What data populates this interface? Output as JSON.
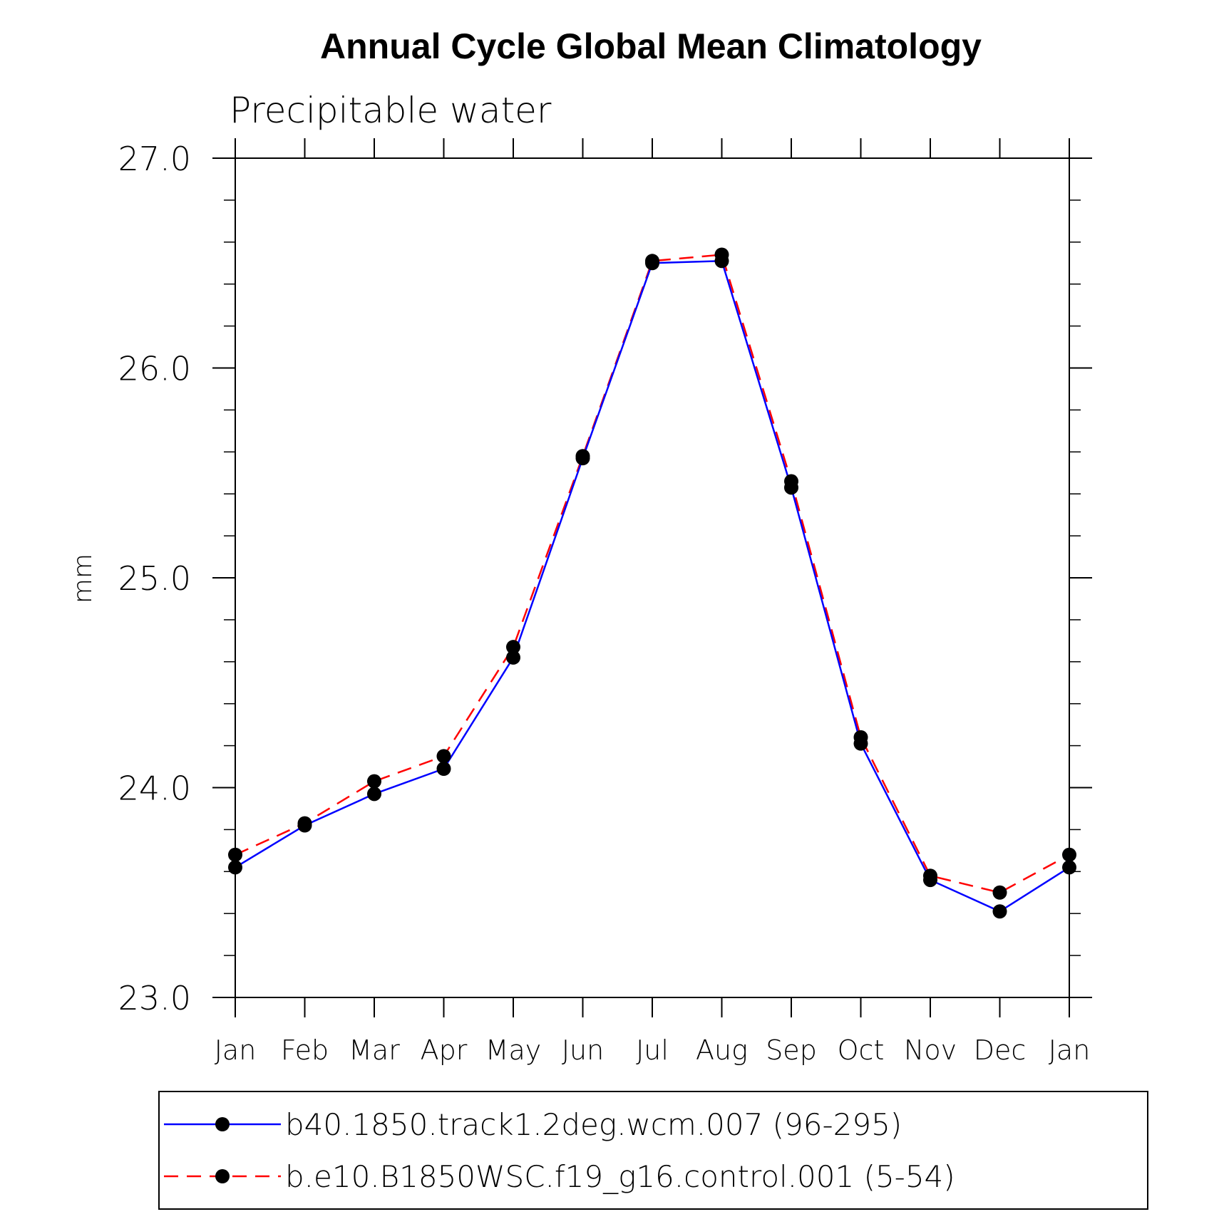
{
  "chart_data": {
    "type": "line",
    "title": "Annual Cycle Global Mean Climatology",
    "subtitle": "Precipitable water",
    "xlabel": "",
    "ylabel": "mm",
    "categories": [
      "Jan",
      "Feb",
      "Mar",
      "Apr",
      "May",
      "Jun",
      "Jul",
      "Aug",
      "Sep",
      "Oct",
      "Nov",
      "Dec",
      "Jan"
    ],
    "ylim": [
      23.0,
      27.0
    ],
    "yticks": [
      "23.0",
      "24.0",
      "25.0",
      "26.0",
      "27.0"
    ],
    "grid": false,
    "legend_position": "bottom",
    "series": [
      {
        "name": "b40.1850.track1.2deg.wcm.007 (96-295)",
        "color": "#0000ff",
        "line_style": "solid",
        "marker": "filled-circle",
        "values": [
          23.62,
          23.82,
          23.97,
          24.09,
          24.62,
          25.57,
          26.5,
          26.51,
          25.43,
          24.21,
          23.56,
          23.41,
          23.62
        ]
      },
      {
        "name": "b.e10.B1850WSC.f19_g16.control.001 (5-54)",
        "color": "#ff0000",
        "line_style": "dashed",
        "marker": "filled-circle",
        "values": [
          23.68,
          23.83,
          24.03,
          24.15,
          24.67,
          25.58,
          26.51,
          26.54,
          25.46,
          24.24,
          23.58,
          23.5,
          23.68
        ]
      }
    ]
  }
}
